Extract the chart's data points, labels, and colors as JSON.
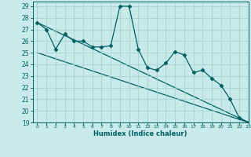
{
  "xlabel": "Humidex (Indice chaleur)",
  "bg_color": "#c8eaea",
  "grid_color": "#a0d0d0",
  "line_color": "#006060",
  "xlim": [
    -0.5,
    23
  ],
  "ylim": [
    19,
    29.4
  ],
  "xticks": [
    0,
    1,
    2,
    3,
    4,
    5,
    6,
    7,
    8,
    9,
    10,
    11,
    12,
    13,
    14,
    15,
    16,
    17,
    18,
    19,
    20,
    21,
    22,
    23
  ],
  "yticks": [
    19,
    20,
    21,
    22,
    23,
    24,
    25,
    26,
    27,
    28,
    29
  ],
  "series1_x": [
    0,
    1,
    2,
    3,
    4,
    5,
    6,
    7,
    8,
    9,
    10,
    11,
    12,
    13,
    14,
    15,
    16,
    17,
    18,
    19,
    20,
    21,
    22,
    23
  ],
  "series1_y": [
    27.6,
    27.0,
    25.3,
    26.6,
    26.0,
    26.0,
    25.5,
    25.5,
    25.6,
    29.0,
    29.0,
    25.3,
    23.7,
    23.5,
    24.1,
    25.1,
    24.8,
    23.3,
    23.5,
    22.8,
    22.2,
    21.0,
    19.4,
    19.0
  ],
  "series2_x": [
    0,
    23
  ],
  "series2_y": [
    27.6,
    19.0
  ],
  "series3_x": [
    0,
    23
  ],
  "series3_y": [
    25.0,
    19.0
  ],
  "marker": "D",
  "markersize": 2.5,
  "linewidth": 0.9
}
